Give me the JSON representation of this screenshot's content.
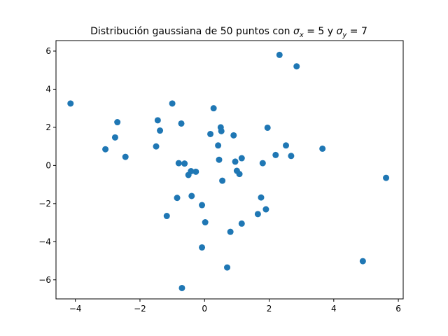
{
  "chart_data": {
    "type": "scatter",
    "title": "Distribución gaussiana de 50 puntos con σx = 5 y σy = 7",
    "title_parts": {
      "prefix": "Distribución gaussiana de 50 puntos con ",
      "sigma": "σ",
      "sub_x": "x",
      "eq_x": " = 5 y ",
      "sub_y": "y",
      "eq_y": " = 7"
    },
    "xlabel": "",
    "ylabel": "",
    "xlim": [
      -4.6,
      6.15
    ],
    "ylim": [
      -7.0,
      6.55
    ],
    "xticks": [
      -4,
      -2,
      0,
      2,
      4,
      6
    ],
    "yticks": [
      -6,
      -4,
      -2,
      0,
      2,
      4,
      6
    ],
    "grid": false,
    "color": "#1f77b4",
    "points": [
      [
        -4.15,
        3.25
      ],
      [
        -3.07,
        0.85
      ],
      [
        -2.77,
        1.47
      ],
      [
        -2.7,
        2.27
      ],
      [
        -2.45,
        0.45
      ],
      [
        -1.5,
        1.0
      ],
      [
        -1.45,
        2.37
      ],
      [
        -1.38,
        1.83
      ],
      [
        -1.17,
        -2.65
      ],
      [
        -1.0,
        3.25
      ],
      [
        -0.85,
        -1.7
      ],
      [
        -0.8,
        0.12
      ],
      [
        -0.72,
        2.2
      ],
      [
        -0.7,
        -6.43
      ],
      [
        -0.62,
        0.1
      ],
      [
        -0.5,
        -0.5
      ],
      [
        -0.42,
        -0.3
      ],
      [
        -0.4,
        -1.6
      ],
      [
        -0.27,
        -0.33
      ],
      [
        -0.08,
        -2.08
      ],
      [
        -0.08,
        -4.3
      ],
      [
        0.02,
        -2.98
      ],
      [
        0.18,
        1.65
      ],
      [
        0.28,
        3.0
      ],
      [
        0.42,
        1.05
      ],
      [
        0.45,
        0.3
      ],
      [
        0.5,
        2.0
      ],
      [
        0.52,
        1.8
      ],
      [
        0.55,
        -0.8
      ],
      [
        0.7,
        -5.35
      ],
      [
        0.8,
        -3.48
      ],
      [
        0.9,
        1.58
      ],
      [
        0.95,
        0.2
      ],
      [
        1.0,
        -0.28
      ],
      [
        1.08,
        -0.45
      ],
      [
        1.15,
        0.38
      ],
      [
        1.15,
        -3.05
      ],
      [
        1.65,
        -2.55
      ],
      [
        1.75,
        -1.68
      ],
      [
        1.8,
        0.12
      ],
      [
        1.9,
        -2.3
      ],
      [
        1.95,
        1.98
      ],
      [
        2.2,
        0.55
      ],
      [
        2.32,
        5.8
      ],
      [
        2.52,
        1.05
      ],
      [
        2.68,
        0.5
      ],
      [
        2.85,
        5.2
      ],
      [
        3.65,
        0.88
      ],
      [
        4.9,
        -5.02
      ],
      [
        5.62,
        -0.65
      ]
    ]
  }
}
